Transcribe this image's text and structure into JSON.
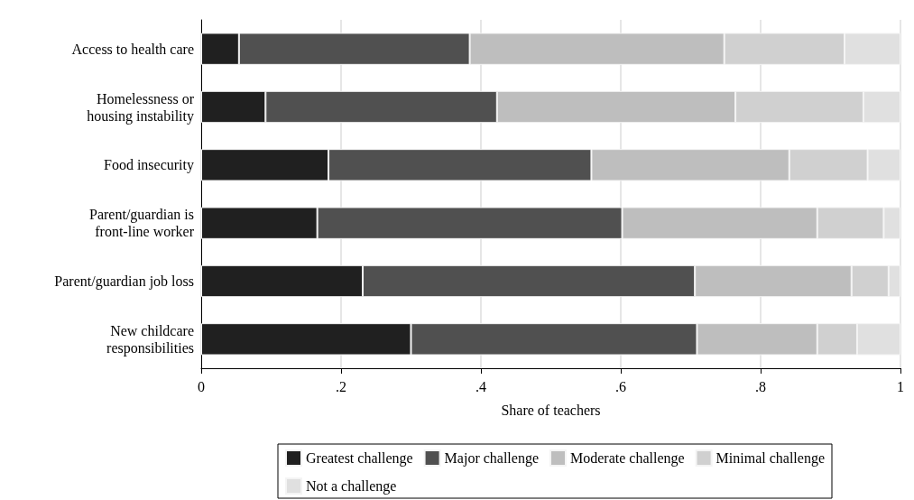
{
  "chart_data": {
    "type": "bar",
    "orientation": "horizontal",
    "stacked": true,
    "xlabel": "Share of teachers",
    "categories": [
      "Access to health care",
      "Homelessness or\nhousing instability",
      "Food insecurity",
      "Parent/guardian is\nfront-line worker",
      "Parent/guardian job loss",
      "New childcare\nresponsibilities"
    ],
    "series": [
      {
        "name": "Greatest challenge",
        "color": "#202020",
        "values": [
          0.054,
          0.092,
          0.182,
          0.166,
          0.231,
          0.3
        ]
      },
      {
        "name": "Major challenge",
        "color": "#505050",
        "values": [
          0.33,
          0.331,
          0.376,
          0.436,
          0.475,
          0.409
        ]
      },
      {
        "name": "Moderate challenge",
        "color": "#bebebe",
        "values": [
          0.364,
          0.341,
          0.283,
          0.279,
          0.224,
          0.172
        ]
      },
      {
        "name": "Minimal challenge",
        "color": "#d0d0d0",
        "values": [
          0.172,
          0.183,
          0.112,
          0.095,
          0.053,
          0.057
        ]
      },
      {
        "name": "Not a challenge",
        "color": "#e0e0e0",
        "values": [
          0.08,
          0.053,
          0.047,
          0.024,
          0.017,
          0.062
        ]
      }
    ],
    "xlim": [
      0,
      1
    ],
    "xticks": [
      0,
      {
        "value": 0.2,
        "label": ".2"
      },
      {
        "value": 0.4,
        "label": ".4"
      },
      {
        "value": 0.6,
        "label": ".6"
      },
      {
        "value": 0.8,
        "label": ".8"
      },
      1
    ],
    "grid": "x",
    "legend": "bottom"
  }
}
